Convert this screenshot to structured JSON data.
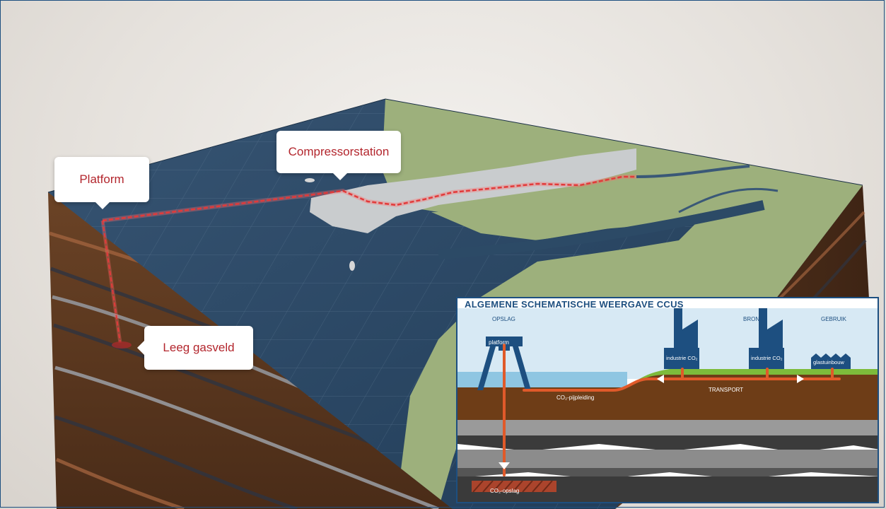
{
  "callouts": {
    "platform": "Platform",
    "compressor": "Compressorstation",
    "gasveld": "Leeg gasveld"
  },
  "inset": {
    "title": "ALGEMENE SCHEMATISCHE WEERGAVE CCUS",
    "zones": {
      "opslag": "OPSLAG",
      "bron": "BRON",
      "gebruik": "GEBRUIK"
    },
    "platform_label": "platform",
    "industry_1": "industrie CO₂",
    "industry_2": "industrie CO₂",
    "greenhouse": "glastuinbouw",
    "transport": "TRANSPORT",
    "pipeline": "CO₂-pijpleiding",
    "storage": "CO₂-opslag"
  },
  "colors": {
    "accent_red": "#b3262d",
    "pipe_orange": "#e05a2a",
    "sea": "#2c4a66",
    "land": "#9db07c",
    "soil": "#6b4326",
    "frame_blue": "#1d4f80"
  }
}
